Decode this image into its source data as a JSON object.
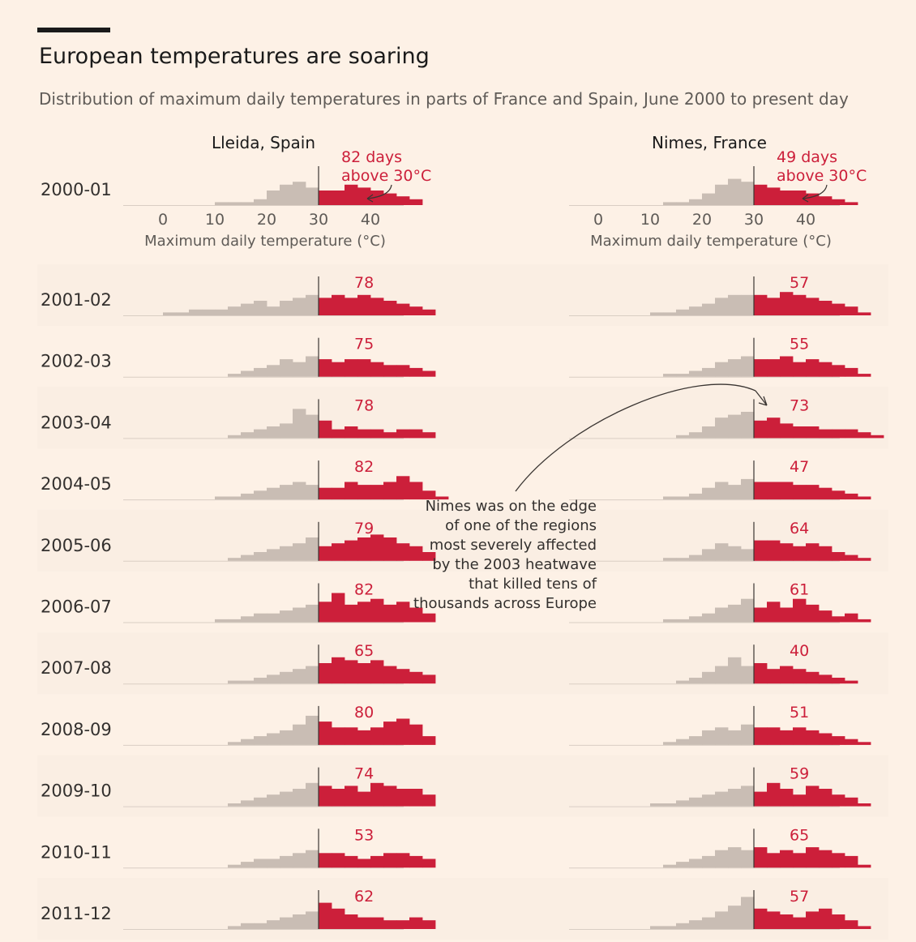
{
  "header": {
    "title": "European temperatures are soaring",
    "subtitle": "Distribution of maximum daily temperatures in parts of France and Spain, June 2000 to present day"
  },
  "colors": {
    "background": "#fdf1e6",
    "band": "#faeee3",
    "below_30": "#c9bdb4",
    "above_30": "#cc1f3a",
    "text": "#33302e",
    "label_red": "#cc1f3a"
  },
  "chart_data": {
    "type": "histogram",
    "xlabel": "Maximum daily temperature (°C)",
    "xticks": [
      0,
      10,
      20,
      30,
      40
    ],
    "threshold": 30,
    "bin_width": 2.5,
    "annotation_first_row": [
      "days",
      "above 30°C"
    ],
    "note": [
      "Nimes was on the edge",
      "of one of the regions",
      "most severely affected",
      "by the 2003 heatwave",
      "that killed tens of",
      "thousands across Europe"
    ],
    "years": [
      "2000-01",
      "2001-02",
      "2002-03",
      "2003-04",
      "2004-05",
      "2005-06",
      "2006-07",
      "2007-08",
      "2008-09",
      "2009-10",
      "2010-11",
      "2011-12"
    ],
    "series": [
      {
        "name": "Lleida, Spain",
        "days_above_30": [
          82,
          78,
          75,
          78,
          82,
          79,
          82,
          65,
          80,
          74,
          53,
          62
        ],
        "counts": [
          [
            0,
            0,
            0,
            0,
            1,
            1,
            1,
            2,
            5,
            7,
            8,
            6,
            5,
            5,
            7,
            6,
            5,
            4,
            3,
            2,
            0,
            0
          ],
          [
            1,
            1,
            2,
            2,
            2,
            3,
            4,
            5,
            3,
            5,
            6,
            7,
            6,
            7,
            6,
            7,
            6,
            5,
            4,
            3,
            2,
            0
          ],
          [
            0,
            0,
            0,
            0,
            0,
            1,
            2,
            3,
            4,
            6,
            5,
            7,
            6,
            5,
            6,
            6,
            5,
            4,
            4,
            3,
            2,
            0
          ],
          [
            0,
            0,
            0,
            0,
            0,
            1,
            2,
            3,
            4,
            5,
            10,
            8,
            6,
            3,
            4,
            3,
            3,
            2,
            3,
            3,
            2,
            0
          ],
          [
            0,
            0,
            0,
            0,
            1,
            1,
            2,
            3,
            4,
            5,
            6,
            5,
            4,
            4,
            6,
            5,
            5,
            6,
            8,
            6,
            3,
            1
          ],
          [
            0,
            0,
            0,
            0,
            0,
            1,
            2,
            3,
            4,
            5,
            6,
            8,
            5,
            6,
            7,
            8,
            9,
            8,
            6,
            5,
            3,
            0
          ],
          [
            0,
            0,
            0,
            0,
            1,
            1,
            2,
            3,
            3,
            4,
            5,
            6,
            7,
            10,
            6,
            7,
            8,
            6,
            7,
            5,
            3,
            0
          ],
          [
            0,
            0,
            0,
            0,
            0,
            1,
            1,
            2,
            3,
            4,
            5,
            6,
            7,
            9,
            8,
            7,
            8,
            6,
            5,
            4,
            3,
            0
          ],
          [
            0,
            0,
            0,
            0,
            0,
            1,
            2,
            3,
            4,
            5,
            7,
            10,
            8,
            6,
            6,
            5,
            6,
            8,
            9,
            7,
            3,
            0
          ],
          [
            0,
            0,
            0,
            0,
            0,
            1,
            2,
            3,
            4,
            5,
            6,
            8,
            7,
            6,
            7,
            5,
            8,
            7,
            6,
            6,
            4,
            0
          ],
          [
            0,
            0,
            0,
            0,
            0,
            1,
            2,
            3,
            3,
            4,
            5,
            6,
            5,
            5,
            4,
            3,
            4,
            5,
            5,
            4,
            3,
            0
          ],
          [
            0,
            0,
            0,
            0,
            0,
            1,
            2,
            2,
            3,
            4,
            5,
            6,
            9,
            7,
            5,
            4,
            4,
            3,
            3,
            4,
            3,
            0
          ]
        ]
      },
      {
        "name": "Nimes, France",
        "days_above_30": [
          49,
          57,
          55,
          73,
          47,
          64,
          61,
          40,
          51,
          59,
          65,
          57
        ],
        "counts": [
          [
            0,
            0,
            0,
            0,
            0,
            1,
            1,
            2,
            4,
            7,
            9,
            8,
            7,
            6,
            5,
            5,
            4,
            3,
            2,
            1,
            0,
            0
          ],
          [
            0,
            0,
            0,
            0,
            1,
            1,
            2,
            3,
            4,
            6,
            7,
            7,
            7,
            6,
            8,
            7,
            6,
            5,
            4,
            3,
            1,
            0
          ],
          [
            0,
            0,
            0,
            0,
            0,
            1,
            1,
            2,
            3,
            5,
            6,
            7,
            6,
            6,
            7,
            5,
            6,
            5,
            4,
            3,
            1,
            0
          ],
          [
            0,
            0,
            0,
            0,
            0,
            0,
            1,
            2,
            4,
            7,
            8,
            9,
            6,
            7,
            5,
            4,
            4,
            3,
            3,
            3,
            2,
            1
          ],
          [
            0,
            0,
            0,
            0,
            0,
            1,
            1,
            2,
            4,
            6,
            5,
            7,
            6,
            6,
            6,
            5,
            5,
            4,
            3,
            2,
            1,
            0
          ],
          [
            0,
            0,
            0,
            0,
            0,
            1,
            1,
            2,
            4,
            6,
            5,
            4,
            7,
            7,
            6,
            5,
            6,
            5,
            3,
            2,
            1,
            0
          ],
          [
            0,
            0,
            0,
            0,
            0,
            1,
            1,
            2,
            3,
            5,
            6,
            8,
            5,
            7,
            5,
            8,
            6,
            4,
            2,
            3,
            1,
            0
          ],
          [
            0,
            0,
            0,
            0,
            0,
            0,
            1,
            2,
            4,
            6,
            9,
            6,
            7,
            5,
            6,
            5,
            4,
            3,
            2,
            1,
            0,
            0
          ],
          [
            0,
            0,
            0,
            0,
            0,
            1,
            2,
            3,
            5,
            6,
            5,
            7,
            6,
            6,
            5,
            6,
            5,
            4,
            3,
            2,
            1,
            0
          ],
          [
            0,
            0,
            0,
            0,
            1,
            1,
            2,
            3,
            4,
            5,
            6,
            7,
            5,
            8,
            6,
            4,
            7,
            6,
            4,
            3,
            1,
            0
          ],
          [
            0,
            0,
            0,
            0,
            0,
            1,
            2,
            3,
            4,
            6,
            7,
            6,
            7,
            5,
            6,
            5,
            7,
            6,
            5,
            4,
            1,
            0
          ],
          [
            0,
            0,
            0,
            0,
            1,
            1,
            2,
            3,
            4,
            6,
            8,
            11,
            7,
            6,
            5,
            4,
            6,
            7,
            5,
            3,
            1,
            0
          ]
        ]
      }
    ]
  }
}
